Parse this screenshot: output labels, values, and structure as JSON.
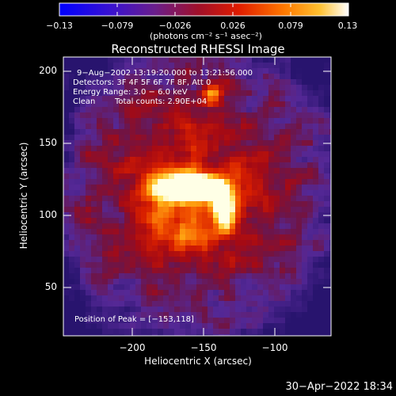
{
  "colorbar": {
    "ticks": [
      "−0.13",
      "−0.079",
      "−0.026",
      "0.026",
      "0.079",
      "0.13"
    ],
    "units": "(photons cm⁻² s⁻¹ asec⁻²)"
  },
  "title": "Reconstructed RHESSI Image",
  "info": {
    "time": "9−Aug−2002 13:19:20.000 to 13:21:56.000",
    "detectors": "Detectors: 3F 4F 5F 6F 7F 8F, Att 0",
    "energy": "Energy Range: 3.0 − 6.0 keV",
    "clean": "Clean",
    "counts": "Total counts: 2.90E+04",
    "peak": "Position of Peak = [−153,118]"
  },
  "axes": {
    "xlabel": "Heliocentric X (arcsec)",
    "ylabel": "Heliocentric Y (arcsec)",
    "xticks": [
      "−200",
      "−150",
      "−100"
    ],
    "yticks": [
      "200",
      "150",
      "100",
      "50"
    ]
  },
  "timestamp": "30−Apr−2022 18:34"
}
